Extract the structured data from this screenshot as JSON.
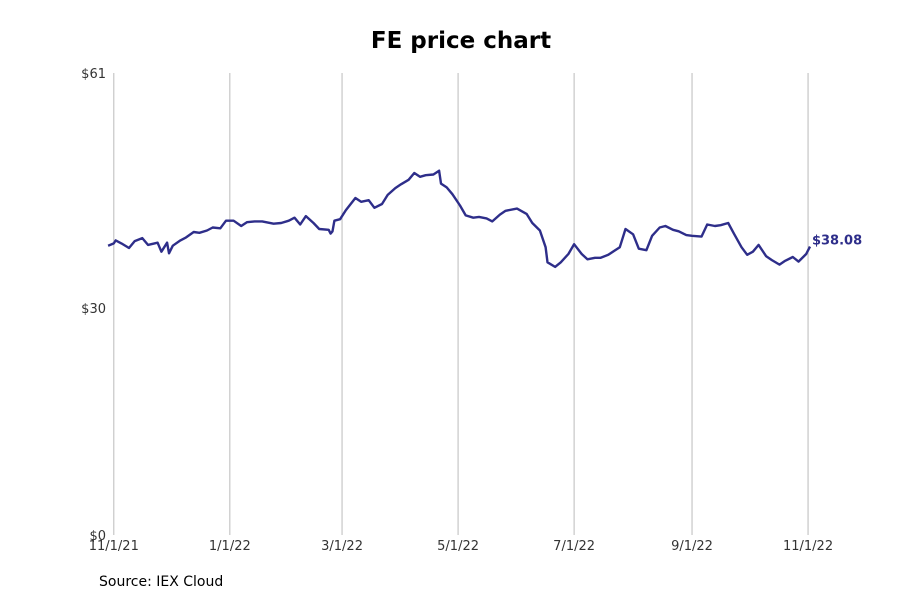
{
  "colors": {
    "line": "#2e2e8a",
    "grid": "#bbbbbb",
    "text": "#333333"
  },
  "source": "Source: IEX Cloud",
  "chart_data": {
    "type": "line",
    "title": "FE price chart",
    "xlabel": "",
    "ylabel": "",
    "ylim": [
      0,
      61
    ],
    "xlim": [
      "2021-10-30",
      "2022-11-22"
    ],
    "y_ticks": [
      {
        "value": 0,
        "label": "$0"
      },
      {
        "value": 30,
        "label": "$30"
      },
      {
        "value": 61,
        "label": "$61"
      }
    ],
    "x_ticks": [
      {
        "date": "2021-11-01",
        "label": "11/1/21"
      },
      {
        "date": "2022-01-01",
        "label": "1/1/22"
      },
      {
        "date": "2022-03-01",
        "label": "3/1/22"
      },
      {
        "date": "2022-05-01",
        "label": "5/1/22"
      },
      {
        "date": "2022-07-01",
        "label": "7/1/22"
      },
      {
        "date": "2022-09-01",
        "label": "9/1/22"
      },
      {
        "date": "2022-11-01",
        "label": "11/1/22"
      }
    ],
    "grid": "vertical at x ticks",
    "last_value_label": "$38.08",
    "series": [
      {
        "values": [
          [
            "2021-10-29",
            38.2
          ],
          [
            "2021-11-01",
            38.5
          ],
          [
            "2021-11-02",
            38.9
          ],
          [
            "2021-11-05",
            38.5
          ],
          [
            "2021-11-09",
            37.9
          ],
          [
            "2021-11-12",
            38.8
          ],
          [
            "2021-11-16",
            39.2
          ],
          [
            "2021-11-19",
            38.3
          ],
          [
            "2021-11-24",
            38.6
          ],
          [
            "2021-11-26",
            37.4
          ],
          [
            "2021-11-29",
            38.6
          ],
          [
            "2021-11-30",
            37.2
          ],
          [
            "2021-12-02",
            38.2
          ],
          [
            "2021-12-06",
            38.9
          ],
          [
            "2021-12-09",
            39.3
          ],
          [
            "2021-12-13",
            40.0
          ],
          [
            "2021-12-16",
            39.9
          ],
          [
            "2021-12-20",
            40.2
          ],
          [
            "2021-12-23",
            40.6
          ],
          [
            "2021-12-27",
            40.5
          ],
          [
            "2021-12-30",
            41.5
          ],
          [
            "2022-01-03",
            41.5
          ],
          [
            "2022-01-07",
            40.8
          ],
          [
            "2022-01-10",
            41.3
          ],
          [
            "2022-01-14",
            41.4
          ],
          [
            "2022-01-18",
            41.4
          ],
          [
            "2022-01-24",
            41.1
          ],
          [
            "2022-01-28",
            41.2
          ],
          [
            "2022-02-01",
            41.5
          ],
          [
            "2022-02-04",
            41.9
          ],
          [
            "2022-02-07",
            41.0
          ],
          [
            "2022-02-10",
            42.1
          ],
          [
            "2022-02-14",
            41.2
          ],
          [
            "2022-02-17",
            40.4
          ],
          [
            "2022-02-22",
            40.3
          ],
          [
            "2022-02-23",
            39.8
          ],
          [
            "2022-02-24",
            40.1
          ],
          [
            "2022-02-25",
            41.5
          ],
          [
            "2022-02-28",
            41.7
          ],
          [
            "2022-03-03",
            42.9
          ],
          [
            "2022-03-08",
            44.5
          ],
          [
            "2022-03-11",
            44.0
          ],
          [
            "2022-03-15",
            44.2
          ],
          [
            "2022-03-18",
            43.2
          ],
          [
            "2022-03-22",
            43.7
          ],
          [
            "2022-03-25",
            44.9
          ],
          [
            "2022-03-29",
            45.8
          ],
          [
            "2022-04-01",
            46.3
          ],
          [
            "2022-04-05",
            46.9
          ],
          [
            "2022-04-08",
            47.8
          ],
          [
            "2022-04-11",
            47.3
          ],
          [
            "2022-04-14",
            47.5
          ],
          [
            "2022-04-18",
            47.6
          ],
          [
            "2022-04-21",
            48.1
          ],
          [
            "2022-04-22",
            46.4
          ],
          [
            "2022-04-25",
            45.9
          ],
          [
            "2022-04-28",
            45.0
          ],
          [
            "2022-05-02",
            43.5
          ],
          [
            "2022-05-05",
            42.2
          ],
          [
            "2022-05-09",
            41.9
          ],
          [
            "2022-05-12",
            42.0
          ],
          [
            "2022-05-16",
            41.8
          ],
          [
            "2022-05-19",
            41.4
          ],
          [
            "2022-05-23",
            42.3
          ],
          [
            "2022-05-26",
            42.8
          ],
          [
            "2022-06-01",
            43.1
          ],
          [
            "2022-06-06",
            42.4
          ],
          [
            "2022-06-09",
            41.2
          ],
          [
            "2022-06-13",
            40.2
          ],
          [
            "2022-06-16",
            38.0
          ],
          [
            "2022-06-17",
            36.0
          ],
          [
            "2022-06-21",
            35.4
          ],
          [
            "2022-06-24",
            36.0
          ],
          [
            "2022-06-28",
            37.1
          ],
          [
            "2022-07-01",
            38.4
          ],
          [
            "2022-07-05",
            37.1
          ],
          [
            "2022-07-08",
            36.4
          ],
          [
            "2022-07-12",
            36.6
          ],
          [
            "2022-07-15",
            36.6
          ],
          [
            "2022-07-19",
            37.0
          ],
          [
            "2022-07-22",
            37.5
          ],
          [
            "2022-07-25",
            38.0
          ],
          [
            "2022-07-28",
            40.4
          ],
          [
            "2022-08-01",
            39.7
          ],
          [
            "2022-08-04",
            37.8
          ],
          [
            "2022-08-08",
            37.6
          ],
          [
            "2022-08-11",
            39.5
          ],
          [
            "2022-08-15",
            40.6
          ],
          [
            "2022-08-18",
            40.8
          ],
          [
            "2022-08-22",
            40.3
          ],
          [
            "2022-08-25",
            40.1
          ],
          [
            "2022-08-29",
            39.6
          ],
          [
            "2022-09-01",
            39.5
          ],
          [
            "2022-09-06",
            39.4
          ],
          [
            "2022-09-09",
            41.0
          ],
          [
            "2022-09-13",
            40.8
          ],
          [
            "2022-09-16",
            40.9
          ],
          [
            "2022-09-20",
            41.2
          ],
          [
            "2022-09-23",
            39.8
          ],
          [
            "2022-09-27",
            38.0
          ],
          [
            "2022-09-30",
            37.0
          ],
          [
            "2022-10-03",
            37.4
          ],
          [
            "2022-10-06",
            38.3
          ],
          [
            "2022-10-10",
            36.8
          ],
          [
            "2022-10-13",
            36.3
          ],
          [
            "2022-10-17",
            35.7
          ],
          [
            "2022-10-20",
            36.2
          ],
          [
            "2022-10-24",
            36.7
          ],
          [
            "2022-10-27",
            36.1
          ],
          [
            "2022-10-31",
            37.1
          ],
          [
            "2022-11-02",
            38.08
          ]
        ]
      }
    ]
  }
}
